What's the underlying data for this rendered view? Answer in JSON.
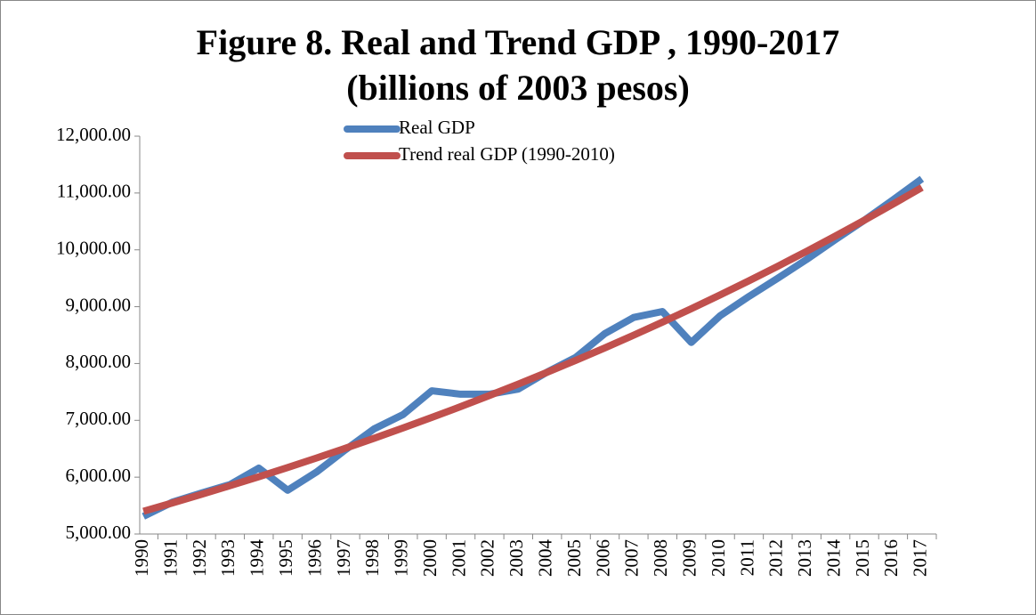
{
  "chart_data": {
    "type": "line",
    "title": [
      "Figure 8. Real and Trend GDP , 1990-2017",
      "(billions of 2003 pesos)"
    ],
    "categories": [
      "1990",
      "1991",
      "1992",
      "1993",
      "1994",
      "1995",
      "1996",
      "1997",
      "1998",
      "1999",
      "2000",
      "2001",
      "2002",
      "2003",
      "2004",
      "2005",
      "2006",
      "2007",
      "2008",
      "2009",
      "2010",
      "2011",
      "2012",
      "2013",
      "2014",
      "2015",
      "2016",
      "2017"
    ],
    "series": [
      {
        "name": "Real GDP",
        "color": "#4f81bd",
        "values": [
          5310,
          5560,
          5720,
          5870,
          6160,
          5770,
          6090,
          6480,
          6850,
          7100,
          7520,
          7460,
          7460,
          7550,
          7850,
          8110,
          8525,
          8810,
          8915,
          8370,
          8840,
          9180,
          9500,
          9830,
          10180,
          10520,
          10880,
          11250
        ]
      },
      {
        "name": "Trend real GDP (1990-2010)",
        "color": "#c0504d",
        "values": [
          5400,
          5546,
          5696,
          5850,
          6008,
          6170,
          6337,
          6508,
          6684,
          6865,
          7051,
          7241,
          7437,
          7638,
          7845,
          8057,
          8274,
          8498,
          8728,
          8964,
          9206,
          9455,
          9711,
          9974,
          10243,
          10520,
          10805,
          11097
        ]
      }
    ],
    "ylim": [
      5000,
      12000
    ],
    "yticks": [
      {
        "value": 5000,
        "label": "5,000.00"
      },
      {
        "value": 6000,
        "label": "6,000.00"
      },
      {
        "value": 7000,
        "label": "7,000.00"
      },
      {
        "value": 8000,
        "label": "8,000.00"
      },
      {
        "value": 9000,
        "label": "9,000.00"
      },
      {
        "value": 10000,
        "label": "10,000.00"
      },
      {
        "value": 11000,
        "label": "11,000.00"
      },
      {
        "value": 12000,
        "label": "12,000.00"
      }
    ],
    "grid": false,
    "legend": "top"
  }
}
